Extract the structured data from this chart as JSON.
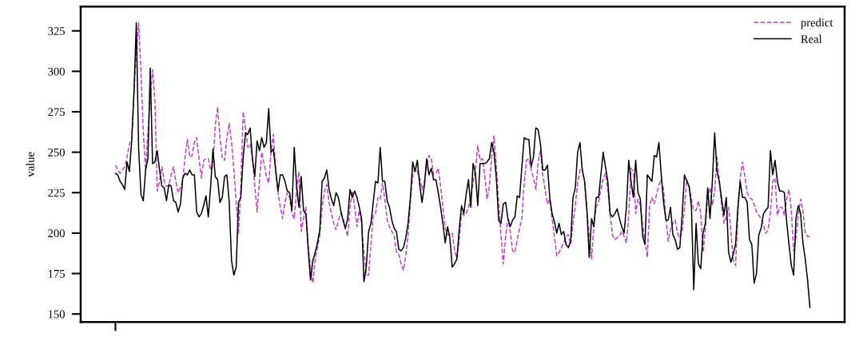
{
  "chart_data": {
    "type": "line",
    "ylabel": "value",
    "categories": [
      null,
      null,
      null,
      null,
      null,
      null,
      null,
      null,
      null,
      null,
      null,
      null,
      null,
      null,
      null,
      null,
      null,
      null,
      null,
      null,
      null,
      null,
      null,
      null,
      null,
      null,
      null,
      null,
      null,
      null,
      null,
      null,
      null,
      null,
      null,
      null,
      null,
      null,
      null,
      null,
      null,
      null,
      null,
      null,
      null,
      null,
      null,
      null,
      null,
      null,
      null,
      null,
      null,
      null,
      null,
      null,
      null,
      null,
      null,
      null,
      null,
      null,
      null,
      null,
      null,
      null,
      null,
      null,
      null,
      null,
      null,
      null,
      null,
      null,
      null,
      null,
      null,
      null,
      null,
      null,
      null,
      null,
      null,
      null,
      null,
      null,
      null,
      null,
      null,
      null,
      null,
      null,
      null,
      null,
      null,
      null,
      null,
      null,
      null,
      null,
      null,
      null,
      null,
      null,
      null,
      null,
      null,
      null,
      null,
      null,
      null,
      null,
      null,
      null,
      null,
      null,
      null,
      null,
      null,
      null,
      null,
      null,
      null,
      null,
      null,
      null,
      null,
      null,
      null,
      null,
      null,
      null,
      null,
      null,
      null,
      null,
      null,
      null,
      null,
      null,
      null,
      null,
      null,
      null,
      null,
      null,
      null,
      null,
      null,
      null,
      null,
      null,
      null,
      null,
      null,
      null,
      null,
      null,
      null,
      null,
      null,
      null,
      null,
      null,
      null,
      null,
      null,
      null,
      null,
      null,
      null,
      null,
      null,
      null,
      null,
      null,
      null,
      null,
      null,
      null,
      null,
      null,
      null,
      null,
      null,
      null,
      null,
      null,
      null,
      null,
      null,
      null,
      null,
      null,
      null,
      null,
      null,
      null,
      null,
      null,
      null,
      null,
      null,
      null,
      null,
      null,
      null,
      null,
      null,
      null,
      null,
      null,
      null,
      null,
      null,
      null,
      null,
      null,
      null,
      null,
      null,
      null,
      null,
      null,
      null,
      null,
      null,
      null,
      null,
      null,
      null,
      null,
      null,
      null,
      null,
      null,
      null,
      null,
      null,
      null,
      null,
      null,
      null,
      null,
      null,
      null,
      null,
      null,
      null,
      null,
      null,
      null,
      null,
      null,
      null,
      null,
      null,
      null,
      null,
      null,
      null,
      null,
      null,
      null,
      null,
      null,
      null,
      null,
      null,
      null,
      null,
      null,
      null,
      null,
      null,
      null,
      null,
      null,
      null,
      null,
      null,
      null,
      null,
      null,
      null,
      null,
      null,
      null,
      null,
      null,
      null,
      null,
      null,
      null,
      null,
      null,
      null,
      null,
      null,
      null
    ],
    "series": [
      {
        "name": "predict",
        "color": "#c040cc",
        "line_style": "dashed",
        "values": [
          242,
          239,
          237,
          239,
          241,
          247,
          255,
          258,
          287,
          312,
          330,
          300,
          262,
          239,
          262,
          284,
          301,
          282,
          226,
          232,
          241,
          232,
          229,
          229,
          236,
          241,
          232,
          225,
          228,
          233,
          247,
          258,
          247,
          248,
          256,
          259,
          246,
          234,
          245,
          246,
          246,
          239,
          242,
          267,
          278,
          259,
          246,
          245,
          259,
          268,
          256,
          239,
          219,
          200,
          229,
          275,
          265,
          253,
          255,
          246,
          229,
          213,
          232,
          250,
          243,
          235,
          231,
          250,
          261,
          239,
          225,
          216,
          209,
          219,
          225,
          222,
          212,
          209,
          227,
          238,
          201,
          209,
          216,
          193,
          178,
          169,
          184,
          191,
          199,
          216,
          226,
          230,
          219,
          212,
          206,
          202,
          208,
          212,
          209,
          203,
          198,
          216,
          226,
          216,
          204,
          214,
          206,
          188,
          174,
          174,
          193,
          211,
          212,
          222,
          221,
          231,
          221,
          208,
          204,
          201,
          199,
          188,
          187,
          181,
          177,
          186,
          199,
          219,
          236,
          240,
          238,
          234,
          227,
          231,
          241,
          248,
          246,
          236,
          237,
          240,
          229,
          216,
          203,
          199,
          199,
          200,
          190,
          184,
          196,
          212,
          211,
          212,
          216,
          222,
          231,
          239,
          254,
          245,
          246,
          236,
          221,
          229,
          247,
          260,
          241,
          219,
          199,
          181,
          198,
          209,
          201,
          189,
          188,
          196,
          203,
          209,
          231,
          245,
          246,
          239,
          234,
          227,
          244,
          251,
          236,
          227,
          218,
          221,
          209,
          198,
          186,
          188,
          191,
          194,
          198,
          199,
          193,
          206,
          217,
          231,
          239,
          240,
          232,
          214,
          198,
          184,
          206,
          216,
          219,
          227,
          234,
          237,
          227,
          211,
          199,
          196,
          197,
          198,
          201,
          198,
          194,
          211,
          240,
          238,
          212,
          221,
          217,
          205,
          195,
          185,
          217,
          222,
          218,
          224,
          230,
          233,
          227,
          209,
          195,
          202,
          206,
          208,
          200,
          197,
          201,
          216,
          233,
          229,
          221,
          214,
          214,
          220,
          212,
          188,
          203,
          223,
          228,
          217,
          226,
          247,
          232,
          217,
          206,
          210,
          216,
          201,
          183,
          180,
          212,
          234,
          244,
          235,
          225,
          222,
          221,
          218,
          213,
          211,
          209,
          205,
          200,
          202,
          213,
          232,
          234,
          211,
          216,
          216,
          211,
          221,
          227,
          214,
          189,
          197,
          211,
          221,
          214,
          200,
          198,
          198
        ]
      },
      {
        "name": "Real",
        "color": "#000000",
        "line_style": "solid",
        "values": [
          237,
          236,
          232,
          230,
          227,
          244,
          238,
          257,
          287,
          330,
          252,
          224,
          220,
          239,
          246,
          302,
          243,
          244,
          251,
          239,
          229,
          228,
          220,
          230,
          229,
          220,
          219,
          213,
          218,
          234,
          237,
          236,
          239,
          236,
          236,
          213,
          210,
          212,
          217,
          223,
          210,
          229,
          252,
          235,
          233,
          219,
          222,
          235,
          236,
          219,
          183,
          174,
          179,
          219,
          222,
          247,
          262,
          261,
          265,
          246,
          235,
          257,
          251,
          259,
          253,
          256,
          277,
          250,
          252,
          239,
          226,
          236,
          236,
          232,
          226,
          225,
          214,
          253,
          229,
          216,
          235,
          214,
          212,
          190,
          171,
          183,
          188,
          194,
          202,
          232,
          234,
          239,
          227,
          221,
          217,
          225,
          222,
          214,
          208,
          203,
          209,
          227,
          222,
          226,
          222,
          216,
          209,
          170,
          179,
          201,
          206,
          219,
          232,
          231,
          253,
          232,
          232,
          220,
          216,
          208,
          203,
          201,
          190,
          189,
          191,
          197,
          206,
          222,
          244,
          238,
          245,
          230,
          219,
          229,
          246,
          236,
          240,
          233,
          233,
          225,
          216,
          206,
          194,
          204,
          197,
          179,
          181,
          184,
          202,
          217,
          212,
          224,
          233,
          216,
          243,
          237,
          217,
          243,
          243,
          243,
          244,
          246,
          256,
          250,
          234,
          208,
          206,
          218,
          219,
          209,
          204,
          208,
          210,
          223,
          222,
          241,
          259,
          258,
          258,
          241,
          247,
          265,
          264,
          255,
          239,
          239,
          242,
          222,
          212,
          207,
          200,
          206,
          199,
          201,
          193,
          191,
          195,
          222,
          228,
          250,
          256,
          239,
          232,
          214,
          185,
          209,
          204,
          222,
          222,
          236,
          250,
          241,
          232,
          212,
          210,
          212,
          215,
          209,
          204,
          200,
          216,
          245,
          232,
          222,
          245,
          225,
          221,
          198,
          193,
          236,
          234,
          232,
          248,
          247,
          256,
          236,
          219,
          208,
          208,
          216,
          199,
          196,
          190,
          191,
          211,
          236,
          232,
          229,
          216,
          165,
          206,
          181,
          178,
          200,
          206,
          228,
          209,
          232,
          262,
          238,
          232,
          221,
          211,
          222,
          188,
          182,
          187,
          193,
          216,
          232,
          222,
          222,
          219,
          196,
          193,
          169,
          175,
          199,
          203,
          212,
          214,
          216,
          251,
          236,
          245,
          232,
          226,
          226,
          225,
          207,
          193,
          180,
          174,
          209,
          217,
          212,
          194,
          184,
          171,
          154
        ]
      }
    ],
    "ylim": [
      145,
      340
    ],
    "yticks": [
      150,
      175,
      200,
      225,
      250,
      275,
      300,
      325
    ],
    "legend": "top right",
    "tick_labels": "y"
  }
}
